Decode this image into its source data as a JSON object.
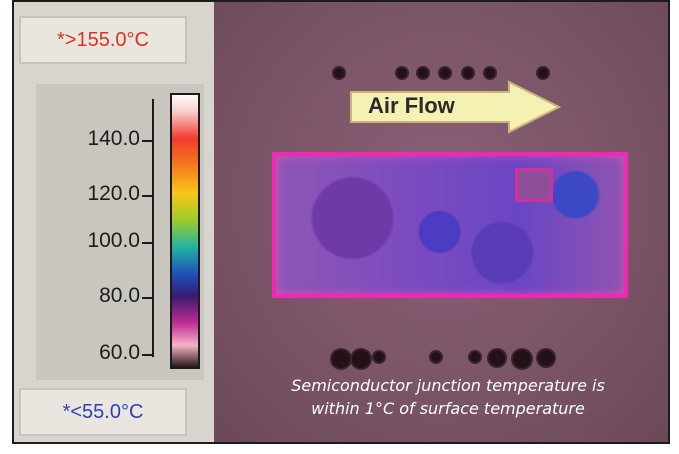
{
  "left_panel": {
    "max_temp": "*>155.0°C",
    "min_temp": "*<55.0°C",
    "scale_ticks": [
      "140.0",
      "120.0",
      "100.0",
      "80.0",
      "60.0"
    ],
    "colors": {
      "max_temp_color": "#e0301f",
      "min_temp_color": "#2f3fb2"
    }
  },
  "thermal_view": {
    "airflow_label": "Air Flow",
    "caption_lines": [
      "Semiconductor junction temperature is",
      "within 1°C of surface temperature"
    ],
    "colors": {
      "hotspot_border": "#f227b2",
      "background": "#7a5567"
    }
  }
}
